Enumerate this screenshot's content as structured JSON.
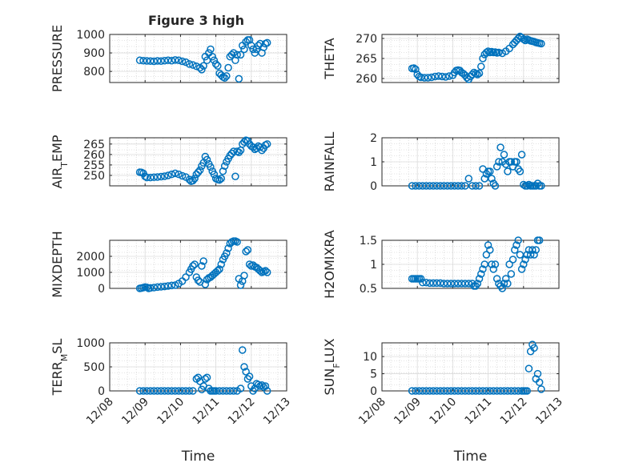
{
  "figure": {
    "title": "Figure 3 high"
  },
  "colors": {
    "marker": "#0072BD",
    "axis": "#262626",
    "grid": "#c8c8c8",
    "background": "#ffffff"
  },
  "chart_data": [
    {
      "type": "scatter",
      "id": "pressure",
      "title": "Figure 3 high",
      "ylabel": "PRESSURE",
      "ylabel_parts": [
        {
          "t": "PRESSURE"
        }
      ],
      "ylim": [
        740,
        1000
      ],
      "yticks": [
        800,
        900,
        1000
      ],
      "ytick_labels": [
        "800",
        "900",
        "1000"
      ],
      "xlim": [
        0,
        5
      ],
      "xticks": [
        0,
        1,
        2,
        3,
        4,
        5
      ],
      "xtick_labels": [
        "12/08",
        "12/09",
        "12/10",
        "12/11",
        "12/12",
        "12/13"
      ],
      "xlabel": "",
      "grid": true,
      "minor_grid": true,
      "x": [
        0.85,
        0.95,
        1.05,
        1.15,
        1.25,
        1.35,
        1.45,
        1.55,
        1.65,
        1.75,
        1.85,
        1.95,
        2.05,
        2.15,
        2.25,
        2.35,
        2.45,
        2.55,
        2.6,
        2.65,
        2.7,
        2.75,
        2.8,
        2.85,
        2.9,
        2.95,
        3.0,
        3.05,
        3.1,
        3.15,
        3.2,
        3.25,
        3.3,
        3.35,
        3.4,
        3.45,
        3.5,
        3.55,
        3.6,
        3.65,
        3.7,
        3.75,
        3.8,
        3.85,
        3.9,
        3.95,
        4.0,
        4.05,
        4.1,
        4.15,
        4.2,
        4.25,
        4.3,
        4.35,
        4.4,
        4.45
      ],
      "y": [
        860,
        858,
        857,
        856,
        855,
        857,
        856,
        858,
        860,
        858,
        862,
        860,
        855,
        850,
        840,
        835,
        828,
        820,
        810,
        830,
        880,
        860,
        900,
        920,
        880,
        860,
        840,
        830,
        790,
        780,
        770,
        765,
        775,
        820,
        880,
        890,
        900,
        860,
        890,
        760,
        890,
        940,
        920,
        960,
        970,
        970,
        940,
        920,
        900,
        920,
        940,
        950,
        900,
        930,
        950,
        955
      ]
    },
    {
      "type": "scatter",
      "id": "theta",
      "title": "",
      "ylabel": "THETA",
      "ylabel_parts": [
        {
          "t": "THETA"
        }
      ],
      "ylim": [
        259,
        271
      ],
      "yticks": [
        260,
        265,
        270
      ],
      "ytick_labels": [
        "260",
        "265",
        "270"
      ],
      "xlim": [
        0,
        5
      ],
      "xticks": [
        0,
        1,
        2,
        3,
        4,
        5
      ],
      "xtick_labels": [
        "12/08",
        "12/09",
        "12/10",
        "12/11",
        "12/12",
        "12/13"
      ],
      "xlabel": "",
      "grid": true,
      "minor_grid": true,
      "x": [
        0.85,
        0.9,
        0.95,
        1.0,
        1.05,
        1.1,
        1.2,
        1.3,
        1.4,
        1.5,
        1.6,
        1.7,
        1.8,
        1.9,
        2.0,
        2.05,
        2.1,
        2.15,
        2.2,
        2.25,
        2.3,
        2.35,
        2.4,
        2.45,
        2.5,
        2.55,
        2.6,
        2.65,
        2.7,
        2.75,
        2.8,
        2.85,
        2.9,
        2.95,
        3.0,
        3.05,
        3.1,
        3.15,
        3.2,
        3.25,
        3.3,
        3.4,
        3.5,
        3.6,
        3.7,
        3.75,
        3.8,
        3.85,
        3.9,
        3.95,
        4.0,
        4.05,
        4.1,
        4.15,
        4.2,
        4.25,
        4.3,
        4.35,
        4.4,
        4.45,
        4.5
      ],
      "y": [
        262.5,
        262.6,
        262.3,
        261.0,
        260.5,
        260.3,
        260.2,
        260.2,
        260.3,
        260.5,
        260.6,
        260.5,
        260.4,
        260.6,
        260.8,
        261.5,
        262.0,
        262.1,
        262.0,
        261.5,
        261.2,
        260.8,
        260.2,
        259.8,
        260.5,
        261.0,
        261.5,
        261.2,
        261.0,
        261.3,
        263.0,
        265.0,
        266.0,
        266.5,
        266.8,
        266.5,
        266.7,
        266.5,
        266.6,
        266.4,
        266.5,
        266.3,
        266.8,
        267.5,
        268.5,
        269.0,
        269.5,
        270.0,
        270.5,
        270.2,
        269.8,
        269.5,
        269.8,
        269.6,
        269.4,
        269.3,
        269.2,
        269.0,
        268.9,
        268.8,
        268.7
      ]
    },
    {
      "type": "scatter",
      "id": "airtemp",
      "title": "",
      "ylabel": "AIR_TEMP",
      "ylabel_parts": [
        {
          "t": "AIR"
        },
        {
          "t": "T",
          "sub": true
        },
        {
          "t": "EMP"
        }
      ],
      "ylim": [
        245,
        268
      ],
      "yticks": [
        250,
        255,
        260,
        265
      ],
      "ytick_labels": [
        "250",
        "255",
        "260",
        "265"
      ],
      "xlim": [
        0,
        5
      ],
      "xticks": [
        0,
        1,
        2,
        3,
        4,
        5
      ],
      "xtick_labels": [
        "12/08",
        "12/09",
        "12/10",
        "12/11",
        "12/12",
        "12/13"
      ],
      "xlabel": "",
      "grid": true,
      "minor_grid": true,
      "x": [
        0.85,
        0.9,
        0.95,
        1.0,
        1.05,
        1.15,
        1.25,
        1.35,
        1.45,
        1.55,
        1.65,
        1.75,
        1.85,
        1.95,
        2.05,
        2.15,
        2.25,
        2.3,
        2.35,
        2.4,
        2.45,
        2.5,
        2.55,
        2.6,
        2.65,
        2.7,
        2.75,
        2.8,
        2.85,
        2.9,
        2.95,
        3.0,
        3.05,
        3.1,
        3.15,
        3.2,
        3.25,
        3.3,
        3.35,
        3.4,
        3.45,
        3.5,
        3.55,
        3.6,
        3.65,
        3.7,
        3.75,
        3.8,
        3.85,
        3.9,
        3.95,
        4.0,
        4.05,
        4.1,
        4.15,
        4.2,
        4.25,
        4.3,
        4.35,
        4.4,
        4.45
      ],
      "y": [
        251.5,
        251.4,
        251.0,
        249.5,
        249.0,
        249.0,
        249.1,
        249.2,
        249.4,
        249.6,
        250.0,
        250.5,
        251.0,
        250.5,
        249.8,
        249.2,
        248.0,
        247.2,
        247.5,
        248.5,
        250.5,
        251.5,
        252.5,
        254.5,
        256.0,
        259.0,
        257.5,
        255.5,
        254.0,
        252.0,
        250.5,
        248.5,
        248.0,
        247.8,
        248.5,
        252.0,
        254.5,
        256.5,
        258.0,
        259.5,
        260.5,
        261.5,
        249.5,
        261.5,
        261.0,
        262.0,
        265.0,
        266.0,
        266.8,
        266.5,
        265.0,
        264.0,
        263.5,
        262.5,
        263.0,
        264.0,
        263.5,
        262.0,
        263.0,
        264.5,
        265.0
      ]
    },
    {
      "type": "scatter",
      "id": "rainfall",
      "title": "",
      "ylabel": "RAINFALL",
      "ylabel_parts": [
        {
          "t": "RAINFALL"
        }
      ],
      "ylim": [
        0,
        2
      ],
      "yticks": [
        0,
        1,
        2
      ],
      "ytick_labels": [
        "0",
        "1",
        "2"
      ],
      "xlim": [
        0,
        5
      ],
      "xticks": [
        0,
        1,
        2,
        3,
        4,
        5
      ],
      "xtick_labels": [
        "12/08",
        "12/09",
        "12/10",
        "12/11",
        "12/12",
        "12/13"
      ],
      "xlabel": "",
      "grid": true,
      "minor_grid": true,
      "x": [
        0.85,
        0.95,
        1.05,
        1.15,
        1.25,
        1.35,
        1.45,
        1.55,
        1.65,
        1.75,
        1.85,
        1.95,
        2.05,
        2.15,
        2.25,
        2.35,
        2.45,
        2.55,
        2.65,
        2.75,
        2.85,
        2.9,
        2.95,
        3.0,
        3.05,
        3.1,
        3.15,
        3.2,
        3.25,
        3.3,
        3.35,
        3.4,
        3.45,
        3.5,
        3.55,
        3.6,
        3.65,
        3.7,
        3.75,
        3.8,
        3.85,
        3.9,
        3.95,
        4.0,
        4.05,
        4.1,
        4.15,
        4.2,
        4.25,
        4.3,
        4.35,
        4.4,
        4.45,
        4.5
      ],
      "y": [
        0,
        0,
        0,
        0,
        0,
        0,
        0,
        0,
        0,
        0,
        0,
        0,
        0,
        0,
        0,
        0,
        0.3,
        0,
        0,
        0,
        0.7,
        0.3,
        0.5,
        0.6,
        0.6,
        0.3,
        0.1,
        0,
        0.8,
        1.0,
        1.6,
        1.0,
        1.3,
        0.9,
        0.6,
        1.0,
        1.0,
        0.8,
        1.0,
        1.0,
        0.7,
        0.6,
        1.3,
        0.05,
        0,
        0,
        0.05,
        0,
        0,
        0,
        0,
        0.1,
        0,
        0
      ]
    },
    {
      "type": "scatter",
      "id": "mixdepth",
      "title": "",
      "ylabel": "MIXDEPTH",
      "ylabel_parts": [
        {
          "t": "MIXDEPTH"
        }
      ],
      "ylim": [
        0,
        3000
      ],
      "yticks": [
        0,
        1000,
        2000
      ],
      "ytick_labels": [
        "0",
        "1000",
        "2000"
      ],
      "xlim": [
        0,
        5
      ],
      "xticks": [
        0,
        1,
        2,
        3,
        4,
        5
      ],
      "xtick_labels": [
        "12/08",
        "12/09",
        "12/10",
        "12/11",
        "12/12",
        "12/13"
      ],
      "xlabel": "",
      "grid": true,
      "minor_grid": true,
      "x": [
        0.85,
        0.9,
        0.95,
        1.0,
        1.05,
        1.1,
        1.15,
        1.25,
        1.35,
        1.45,
        1.55,
        1.65,
        1.75,
        1.85,
        1.95,
        2.05,
        2.15,
        2.25,
        2.3,
        2.35,
        2.4,
        2.45,
        2.5,
        2.55,
        2.6,
        2.65,
        2.7,
        2.75,
        2.8,
        2.85,
        2.9,
        2.95,
        3.0,
        3.05,
        3.1,
        3.15,
        3.2,
        3.25,
        3.3,
        3.35,
        3.4,
        3.45,
        3.5,
        3.55,
        3.6,
        3.65,
        3.7,
        3.75,
        3.8,
        3.85,
        3.9,
        3.95,
        4.0,
        4.05,
        4.1,
        4.15,
        4.2,
        4.25,
        4.3,
        4.35,
        4.4,
        4.45
      ],
      "y": [
        0,
        20,
        50,
        80,
        60,
        0,
        30,
        50,
        80,
        100,
        120,
        150,
        180,
        200,
        300,
        450,
        700,
        1000,
        1200,
        1400,
        1500,
        700,
        500,
        400,
        1400,
        1700,
        250,
        550,
        650,
        700,
        800,
        900,
        1000,
        1100,
        1200,
        1500,
        1800,
        2000,
        2200,
        2500,
        2800,
        2900,
        2950,
        2950,
        2900,
        600,
        200,
        450,
        800,
        2300,
        2400,
        1500,
        1400,
        1450,
        1350,
        1300,
        1200,
        1100,
        1000,
        1050,
        1100,
        1000
      ]
    },
    {
      "type": "scatter",
      "id": "h2omixra",
      "title": "",
      "ylabel": "H2OMIXRA",
      "ylabel_parts": [
        {
          "t": "H2OMIXRA"
        }
      ],
      "ylim": [
        0.5,
        1.5
      ],
      "yticks": [
        0.5,
        1,
        1.5
      ],
      "ytick_labels": [
        "0.5",
        "1",
        "1.5"
      ],
      "xlim": [
        0,
        5
      ],
      "xticks": [
        0,
        1,
        2,
        3,
        4,
        5
      ],
      "xtick_labels": [
        "12/08",
        "12/09",
        "12/10",
        "12/11",
        "12/12",
        "12/13"
      ],
      "xlabel": "",
      "grid": true,
      "minor_grid": true,
      "x": [
        0.85,
        0.9,
        0.95,
        1.0,
        1.05,
        1.1,
        1.15,
        1.25,
        1.35,
        1.45,
        1.55,
        1.65,
        1.75,
        1.85,
        1.95,
        2.05,
        2.15,
        2.25,
        2.35,
        2.45,
        2.55,
        2.6,
        2.65,
        2.7,
        2.75,
        2.8,
        2.85,
        2.9,
        2.95,
        3.0,
        3.05,
        3.1,
        3.15,
        3.2,
        3.25,
        3.3,
        3.35,
        3.4,
        3.45,
        3.5,
        3.55,
        3.6,
        3.65,
        3.7,
        3.75,
        3.8,
        3.85,
        3.9,
        3.95,
        4.0,
        4.05,
        4.1,
        4.15,
        4.2,
        4.25,
        4.3,
        4.35,
        4.4,
        4.45
      ],
      "y": [
        0.7,
        0.7,
        0.7,
        0.7,
        0.7,
        0.7,
        0.62,
        0.62,
        0.61,
        0.61,
        0.61,
        0.61,
        0.6,
        0.6,
        0.6,
        0.6,
        0.6,
        0.6,
        0.6,
        0.6,
        0.6,
        0.55,
        0.55,
        0.6,
        0.7,
        0.8,
        0.9,
        1.0,
        1.2,
        1.4,
        1.3,
        1.0,
        0.9,
        1.0,
        0.7,
        0.6,
        0.55,
        0.5,
        0.6,
        0.7,
        0.6,
        1.0,
        0.8,
        1.1,
        1.3,
        1.4,
        1.5,
        1.2,
        0.9,
        1.0,
        1.1,
        1.2,
        1.3,
        1.2,
        1.3,
        1.2,
        1.3,
        1.5,
        1.5
      ]
    },
    {
      "type": "scatter",
      "id": "terrmsl",
      "title": "",
      "ylabel": "TERR_MSL",
      "ylabel_parts": [
        {
          "t": "TERR"
        },
        {
          "t": "M",
          "sub": true
        },
        {
          "t": "SL"
        }
      ],
      "ylim": [
        0,
        1000
      ],
      "yticks": [
        0,
        500,
        1000
      ],
      "ytick_labels": [
        "0",
        "500",
        "1000"
      ],
      "xlim": [
        0,
        5
      ],
      "xticks": [
        0,
        1,
        2,
        3,
        4,
        5
      ],
      "xtick_labels": [
        "12/08",
        "12/09",
        "12/10",
        "12/11",
        "12/12",
        "12/13"
      ],
      "xlabel": "Time",
      "grid": true,
      "minor_grid": true,
      "x": [
        0.85,
        0.95,
        1.05,
        1.15,
        1.25,
        1.35,
        1.45,
        1.55,
        1.65,
        1.75,
        1.85,
        1.95,
        2.05,
        2.15,
        2.25,
        2.35,
        2.45,
        2.5,
        2.55,
        2.6,
        2.65,
        2.7,
        2.75,
        2.8,
        2.85,
        2.9,
        2.95,
        3.0,
        3.1,
        3.2,
        3.3,
        3.4,
        3.5,
        3.6,
        3.7,
        3.75,
        3.8,
        3.85,
        3.9,
        3.95,
        4.0,
        4.05,
        4.1,
        4.15,
        4.2,
        4.25,
        4.3,
        4.35,
        4.4,
        4.45
      ],
      "y": [
        0,
        0,
        0,
        0,
        0,
        0,
        0,
        0,
        0,
        0,
        0,
        0,
        0,
        0,
        0,
        0,
        250,
        280,
        200,
        30,
        100,
        250,
        280,
        50,
        0,
        0,
        0,
        0,
        0,
        0,
        0,
        0,
        0,
        0,
        50,
        850,
        500,
        400,
        250,
        300,
        100,
        0,
        50,
        150,
        130,
        100,
        120,
        80,
        100,
        0
      ]
    },
    {
      "type": "scatter",
      "id": "sunflux",
      "title": "",
      "ylabel": "SUN_FLUX",
      "ylabel_parts": [
        {
          "t": "SUN"
        },
        {
          "t": "F",
          "sub": true
        },
        {
          "t": "LUX"
        }
      ],
      "ylim": [
        0,
        14
      ],
      "yticks": [
        0,
        5,
        10
      ],
      "ytick_labels": [
        "0",
        "5",
        "10"
      ],
      "xlim": [
        0,
        5
      ],
      "xticks": [
        0,
        1,
        2,
        3,
        4,
        5
      ],
      "xtick_labels": [
        "12/08",
        "12/09",
        "12/10",
        "12/11",
        "12/12",
        "12/13"
      ],
      "xlabel": "Time",
      "grid": true,
      "minor_grid": true,
      "x": [
        0.85,
        0.95,
        1.05,
        1.15,
        1.25,
        1.35,
        1.45,
        1.55,
        1.65,
        1.75,
        1.85,
        1.95,
        2.05,
        2.15,
        2.25,
        2.35,
        2.45,
        2.55,
        2.65,
        2.75,
        2.85,
        2.95,
        3.05,
        3.15,
        3.25,
        3.35,
        3.45,
        3.55,
        3.65,
        3.75,
        3.85,
        3.95,
        4.0,
        4.05,
        4.1,
        4.15,
        4.2,
        4.25,
        4.3,
        4.35,
        4.4,
        4.45,
        4.5
      ],
      "y": [
        0,
        0,
        0,
        0,
        0,
        0,
        0,
        0,
        0,
        0,
        0,
        0,
        0,
        0,
        0,
        0,
        0,
        0,
        0,
        0,
        0,
        0,
        0,
        0,
        0,
        0,
        0,
        0,
        0,
        0,
        0,
        0,
        0,
        0,
        0,
        6.5,
        11.5,
        13.5,
        12.5,
        3.5,
        5.0,
        2.5,
        0.5
      ]
    }
  ]
}
